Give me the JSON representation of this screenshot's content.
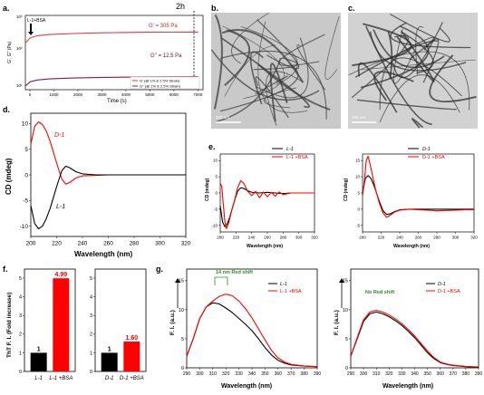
{
  "panels": {
    "a": {
      "letter": "a.",
      "marker": "2h",
      "arrow_label": "L-1+BSA",
      "gprime_label": "G' = 305 Pa",
      "gdouble_label": "G'' = 12.5 Pa",
      "ylabel": "G', G'' (Pa)",
      "xlabel": "Time (s)",
      "xticks": [
        "0",
        "1000",
        "2000",
        "3000",
        "4000",
        "5000",
        "6000",
        "7000"
      ],
      "yticks": [
        "10³",
        "10²",
        "10¹"
      ],
      "legend": [
        "G' (@ 1% & 2.5% Strain)",
        "G'' (@ 1% & 2.5% Strain)"
      ],
      "colors": {
        "gprime": "#e0393e",
        "gdouble": "#8b1a4a"
      }
    },
    "b": {
      "letter": "b.",
      "scale": "200 nm"
    },
    "c": {
      "letter": "c.",
      "scale": "200 nm"
    },
    "d": {
      "letter": "d.",
      "ylabel": "CD (mdeg)",
      "xlabel": "Wavelength (nm)",
      "xticks": [
        "200",
        "220",
        "240",
        "260",
        "280",
        "300",
        "320"
      ],
      "yticks": [
        "10",
        "5",
        "0",
        "-5",
        "-10"
      ],
      "label_D": "D-1",
      "label_L": "L-1"
    },
    "e": {
      "letter": "e.",
      "left": {
        "ylabel": "CD (mdeg)",
        "xlabel": "Wavelength (nm)",
        "legend": [
          "L-1",
          "L-1 +BSA"
        ],
        "yticks": [
          "10",
          "5",
          "0",
          "-5",
          "-10"
        ],
        "xticks": [
          "200",
          "220",
          "240",
          "260",
          "280",
          "300",
          "320"
        ]
      },
      "right": {
        "ylabel": "CD (mdeg)",
        "xlabel": "Wavelength (nm)",
        "legend": [
          "D-1",
          "D-1 +BSA"
        ],
        "yticks": [
          "15",
          "10",
          "5",
          "0",
          "-5"
        ],
        "xticks": [
          "200",
          "220",
          "240",
          "260",
          "280",
          "300",
          "320"
        ]
      }
    },
    "f": {
      "letter": "f.",
      "ylabel": "ThT F. I. (Fold increase)",
      "left": {
        "categories": [
          "L-1",
          "L-1 +BSA"
        ],
        "values": [
          1,
          4.99
        ],
        "value_labels": [
          "1",
          "4.99"
        ],
        "yticks": [
          "5",
          "4",
          "3",
          "2",
          "1",
          "0"
        ]
      },
      "right": {
        "categories": [
          "D-1",
          "D-1 +BSA"
        ],
        "values": [
          1,
          1.6
        ],
        "value_labels": [
          "1",
          "1.60"
        ],
        "yticks": [
          "5",
          "4",
          "3",
          "2",
          "1",
          "0"
        ]
      }
    },
    "g": {
      "letter": "g.",
      "left": {
        "ylabel": "F. I. (a.u.)",
        "xlabel": "Wavelength (nm)",
        "annotation": "14 nm Red shift",
        "legend": [
          "L-1",
          "L-1 +BSA"
        ],
        "yticks": [
          "15",
          "10",
          "5",
          "0"
        ],
        "xticks": [
          "290",
          "300",
          "310",
          "320",
          "330",
          "340",
          "350",
          "360",
          "370",
          "380",
          "390"
        ]
      },
      "right": {
        "ylabel": "F. I. (a.u.)",
        "xlabel": "Wavelength (nm)",
        "annotation": "No Red shift",
        "legend": [
          "D-1",
          "D-1 +BSA"
        ],
        "yticks": [
          "15",
          "10",
          "5",
          "0"
        ],
        "xticks": [
          "290",
          "300",
          "310",
          "320",
          "330",
          "340",
          "350",
          "360",
          "370",
          "380",
          "390"
        ]
      }
    }
  },
  "colors": {
    "black": "#000000",
    "red": "#ff0000",
    "green": "#2e8b2e"
  },
  "chart_data": [
    {
      "type": "line",
      "title": "",
      "xlabel": "Time (s)",
      "ylabel": "G', G'' (Pa)",
      "xlim": [
        0,
        7400
      ],
      "log_y": true,
      "series": [
        {
          "name": "G' (@ 1% & 2.5% Strain)",
          "x": [
            0,
            200,
            500,
            1000,
            2000,
            3000,
            4000,
            5000,
            6000,
            7200
          ],
          "y": [
            140,
            200,
            235,
            255,
            275,
            287,
            295,
            300,
            303,
            305
          ]
        },
        {
          "name": "G'' (@ 1% & 2.5% Strain)",
          "x": [
            0,
            200,
            500,
            1000,
            2000,
            3000,
            4000,
            5000,
            6000,
            7200
          ],
          "y": [
            6.5,
            8.8,
            10,
            10.8,
            11.5,
            11.9,
            12.2,
            12.3,
            12.4,
            12.5
          ]
        }
      ]
    },
    {
      "type": "line",
      "xlabel": "Wavelength (nm)",
      "ylabel": "CD (mdeg)",
      "xlim": [
        200,
        320
      ],
      "ylim": [
        -12,
        12
      ],
      "series": [
        {
          "name": "D-1",
          "x": [
            200,
            203,
            206,
            209,
            212,
            215,
            218,
            221,
            224,
            227,
            230,
            235,
            240,
            250,
            260,
            270,
            280,
            290,
            300,
            310,
            320
          ],
          "y": [
            6,
            9.5,
            10.3,
            9.8,
            8.5,
            6.5,
            4,
            1.5,
            -0.8,
            -1.8,
            -1.5,
            -0.6,
            -0.2,
            -0.1,
            0,
            0,
            0,
            0,
            0,
            0,
            0
          ]
        },
        {
          "name": "L-1",
          "x": [
            200,
            203,
            206,
            209,
            212,
            215,
            218,
            221,
            224,
            227,
            230,
            235,
            240,
            250,
            260,
            270,
            280,
            290,
            300,
            310,
            320
          ],
          "y": [
            -6,
            -9.5,
            -10.5,
            -10,
            -8.5,
            -6.5,
            -4,
            -1.5,
            0.8,
            1.7,
            1.4,
            0.6,
            0.2,
            0,
            0,
            0,
            0,
            0,
            0,
            0,
            0
          ]
        }
      ]
    },
    {
      "type": "line",
      "xlabel": "Wavelength (nm)",
      "ylabel": "CD (mdeg)",
      "xlim": [
        200,
        320
      ],
      "ylim": [
        -12,
        12
      ],
      "series": [
        {
          "name": "L-1",
          "x": [
            200,
            203,
            206,
            209,
            212,
            215,
            218,
            222,
            226,
            230,
            235,
            240,
            250,
            260,
            270,
            280,
            290,
            300,
            310,
            320
          ],
          "y": [
            -4,
            -9,
            -10.4,
            -9.5,
            -7.5,
            -5,
            -2.5,
            0.5,
            1.6,
            1.4,
            0.7,
            0.2,
            0,
            0.2,
            0,
            -0.2,
            0,
            0,
            0,
            0
          ]
        },
        {
          "name": "L-1 +BSA",
          "x": [
            200,
            202,
            204,
            206,
            208,
            211,
            214,
            218,
            222,
            226,
            230,
            235,
            240,
            245,
            250,
            255,
            260,
            265,
            270,
            275,
            280,
            290,
            300,
            310,
            320
          ],
          "y": [
            3,
            2,
            -4,
            -9,
            -11,
            -9,
            -6,
            -2.5,
            1.5,
            3.8,
            3,
            0.5,
            -0.8,
            0.5,
            -1.5,
            0.3,
            -1.2,
            0.2,
            -1,
            0.3,
            -0.5,
            0,
            0,
            0,
            0
          ]
        }
      ]
    },
    {
      "type": "line",
      "xlabel": "Wavelength (nm)",
      "ylabel": "CD (mdeg)",
      "xlim": [
        200,
        320
      ],
      "ylim": [
        -7,
        17
      ],
      "series": [
        {
          "name": "D-1",
          "x": [
            200,
            203,
            206,
            209,
            212,
            215,
            218,
            222,
            226,
            230,
            235,
            240,
            250,
            260,
            270,
            280,
            290,
            300,
            310,
            320
          ],
          "y": [
            5,
            9.5,
            10.4,
            9.5,
            7.5,
            5,
            2.5,
            -0.5,
            -1.6,
            -1.4,
            -0.7,
            -0.2,
            0,
            0,
            0,
            0,
            0,
            0,
            0,
            0
          ]
        },
        {
          "name": "D-1 +BSA",
          "x": [
            200,
            202,
            204,
            206,
            208,
            211,
            214,
            218,
            222,
            226,
            230,
            235,
            240,
            250,
            260,
            270,
            280,
            290,
            300,
            310,
            320
          ],
          "y": [
            4,
            9,
            15,
            16.3,
            14,
            10,
            6,
            2,
            -1.2,
            -2.5,
            -1.8,
            -0.8,
            -0.3,
            0,
            -0.2,
            -0.3,
            -0.5,
            -0.4,
            -0.3,
            -0.2,
            -0.2
          ]
        }
      ]
    },
    {
      "type": "bar",
      "categories": [
        "L-1",
        "L-1 +BSA"
      ],
      "values": [
        1,
        4.99
      ],
      "ylabel": "ThT F. I. (Fold increase)",
      "ylim": [
        0,
        5
      ]
    },
    {
      "type": "bar",
      "categories": [
        "D-1",
        "D-1 +BSA"
      ],
      "values": [
        1,
        1.6
      ],
      "ylim": [
        0,
        5
      ]
    },
    {
      "type": "line",
      "xlabel": "Wavelength (nm)",
      "ylabel": "F. I. (a.u.)",
      "xlim": [
        290,
        390
      ],
      "ylim": [
        0,
        15
      ],
      "series": [
        {
          "name": "L-1",
          "x": [
            290,
            295,
            300,
            305,
            310,
            315,
            320,
            325,
            330,
            335,
            340,
            345,
            350,
            355,
            360,
            365,
            370,
            380,
            390
          ],
          "y": [
            2,
            5,
            8.5,
            10.5,
            11.2,
            11,
            10.3,
            9.5,
            8.5,
            7.5,
            6.4,
            5,
            3.5,
            2.2,
            1.3,
            0.8,
            0.5,
            0.3,
            0.2
          ]
        },
        {
          "name": "L-1 +BSA",
          "x": [
            290,
            295,
            300,
            305,
            310,
            315,
            320,
            325,
            330,
            335,
            340,
            345,
            350,
            355,
            360,
            365,
            370,
            380,
            390
          ],
          "y": [
            2,
            5,
            8.5,
            10.5,
            11.5,
            12.3,
            12.7,
            12.4,
            11.5,
            10.2,
            8.6,
            6.7,
            4.8,
            3,
            1.7,
            1,
            0.6,
            0.3,
            0.2
          ]
        }
      ]
    },
    {
      "type": "line",
      "xlabel": "Wavelength (nm)",
      "ylabel": "F. I. (a.u.)",
      "xlim": [
        290,
        390
      ],
      "ylim": [
        0,
        15
      ],
      "series": [
        {
          "name": "D-1",
          "x": [
            290,
            295,
            300,
            305,
            310,
            315,
            320,
            325,
            330,
            335,
            340,
            345,
            350,
            355,
            360,
            365,
            370,
            380,
            390
          ],
          "y": [
            2,
            5,
            8,
            9.3,
            9.6,
            9.3,
            8.8,
            8.1,
            7.3,
            6.3,
            5.2,
            3.9,
            2.6,
            1.6,
            0.9,
            0.6,
            0.4,
            0.2,
            0.1
          ]
        },
        {
          "name": "D-1 +BSA",
          "x": [
            290,
            295,
            300,
            305,
            310,
            315,
            320,
            325,
            330,
            335,
            340,
            345,
            350,
            355,
            360,
            365,
            370,
            380,
            390
          ],
          "y": [
            2,
            5.2,
            8.3,
            9.6,
            9.9,
            9.6,
            9.1,
            8.4,
            7.6,
            6.6,
            5.5,
            4.2,
            2.9,
            1.8,
            1,
            0.65,
            0.45,
            0.25,
            0.15
          ]
        }
      ]
    }
  ]
}
